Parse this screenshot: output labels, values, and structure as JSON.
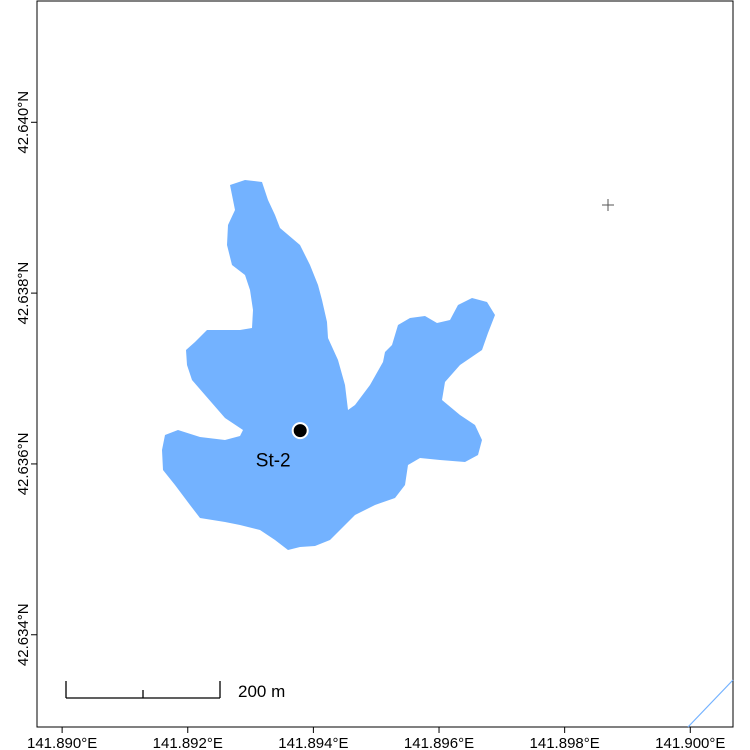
{
  "map": {
    "xlim": [
      141.8896,
      141.90068
    ],
    "ylim": [
      42.63292,
      42.64142
    ],
    "xticks": [
      {
        "value": 141.89,
        "label": "141.890°E"
      },
      {
        "value": 141.892,
        "label": "141.892°E"
      },
      {
        "value": 141.894,
        "label": "141.894°E"
      },
      {
        "value": 141.896,
        "label": "141.896°E"
      },
      {
        "value": 141.898,
        "label": "141.898°E"
      },
      {
        "value": 141.9,
        "label": "141.900°E"
      }
    ],
    "yticks": [
      {
        "value": 42.634,
        "label": "42.634°N"
      },
      {
        "value": 42.636,
        "label": "42.636°N"
      },
      {
        "value": 42.638,
        "label": "42.638°N"
      },
      {
        "value": 42.64,
        "label": "42.640°N"
      }
    ],
    "stations": [
      {
        "label": "St-2",
        "lon": 141.89379,
        "lat": 42.63639
      }
    ],
    "scale_bar": {
      "label": "200 m"
    }
  }
}
